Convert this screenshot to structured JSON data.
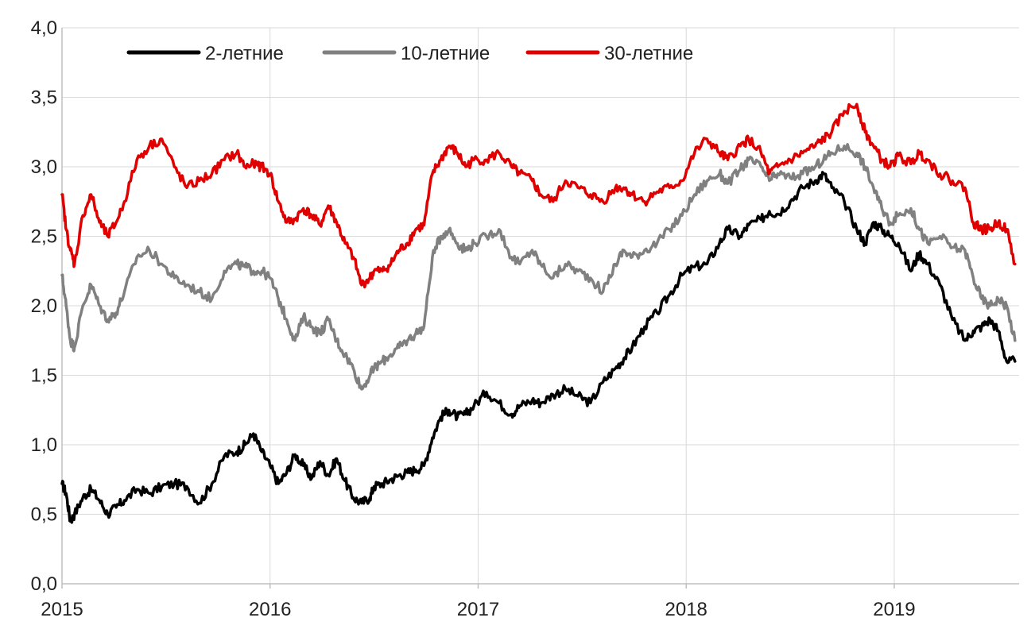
{
  "chart_data": {
    "type": "line",
    "title": "",
    "xlabel": "",
    "ylabel": "",
    "xlim": [
      2015.0,
      2019.6
    ],
    "ylim": [
      0,
      4
    ],
    "y_ticks": [
      0,
      0.5,
      1.0,
      1.5,
      2.0,
      2.5,
      3.0,
      3.5,
      4.0
    ],
    "y_tick_labels": [
      "0,0",
      "0,5",
      "1,0",
      "1,5",
      "2,0",
      "2,5",
      "3,0",
      "3,5",
      "4,0"
    ],
    "x_ticks": [
      2015,
      2016,
      2017,
      2018,
      2019
    ],
    "x_tick_labels": [
      "2015",
      "2016",
      "2017",
      "2018",
      "2019"
    ],
    "grid": true,
    "legend_position": "top",
    "series": [
      {
        "name": "2-летние",
        "color": "#000000",
        "x": [
          2015.0,
          2015.02,
          2015.04,
          2015.06,
          2015.1,
          2015.14,
          2015.18,
          2015.22,
          2015.26,
          2015.3,
          2015.36,
          2015.42,
          2015.48,
          2015.54,
          2015.6,
          2015.66,
          2015.72,
          2015.78,
          2015.84,
          2015.88,
          2015.92,
          2015.96,
          2016.0,
          2016.04,
          2016.08,
          2016.12,
          2016.16,
          2016.2,
          2016.24,
          2016.28,
          2016.32,
          2016.36,
          2016.4,
          2016.44,
          2016.48,
          2016.5,
          2016.54,
          2016.58,
          2016.62,
          2016.66,
          2016.7,
          2016.74,
          2016.78,
          2016.82,
          2016.86,
          2016.9,
          2016.94,
          2016.98,
          2017.04,
          2017.1,
          2017.16,
          2017.2,
          2017.26,
          2017.3,
          2017.36,
          2017.42,
          2017.48,
          2017.54,
          2017.6,
          2017.66,
          2017.7,
          2017.74,
          2017.8,
          2017.86,
          2017.92,
          2017.98,
          2018.04,
          2018.1,
          2018.16,
          2018.2,
          2018.26,
          2018.3,
          2018.36,
          2018.4,
          2018.44,
          2018.5,
          2018.56,
          2018.62,
          2018.66,
          2018.7,
          2018.76,
          2018.82,
          2018.86,
          2018.9,
          2018.94,
          2018.98,
          2019.02,
          2019.08,
          2019.12,
          2019.16,
          2019.22,
          2019.28,
          2019.34,
          2019.38,
          2019.42,
          2019.46,
          2019.5,
          2019.54,
          2019.58
        ],
        "values": [
          0.72,
          0.65,
          0.45,
          0.5,
          0.62,
          0.68,
          0.6,
          0.5,
          0.55,
          0.6,
          0.68,
          0.65,
          0.7,
          0.72,
          0.7,
          0.58,
          0.72,
          0.92,
          0.95,
          1.0,
          1.08,
          0.95,
          0.85,
          0.72,
          0.8,
          0.93,
          0.85,
          0.76,
          0.88,
          0.78,
          0.9,
          0.74,
          0.62,
          0.58,
          0.62,
          0.7,
          0.72,
          0.75,
          0.78,
          0.8,
          0.82,
          0.85,
          1.05,
          1.2,
          1.25,
          1.2,
          1.22,
          1.28,
          1.38,
          1.3,
          1.22,
          1.28,
          1.32,
          1.3,
          1.36,
          1.4,
          1.35,
          1.3,
          1.45,
          1.55,
          1.62,
          1.7,
          1.85,
          1.95,
          2.08,
          2.22,
          2.28,
          2.3,
          2.45,
          2.55,
          2.5,
          2.58,
          2.62,
          2.68,
          2.66,
          2.75,
          2.85,
          2.9,
          2.95,
          2.85,
          2.75,
          2.55,
          2.45,
          2.6,
          2.55,
          2.5,
          2.45,
          2.25,
          2.38,
          2.3,
          2.15,
          1.9,
          1.75,
          1.82,
          1.85,
          1.9,
          1.82,
          1.6,
          1.6
        ]
      },
      {
        "name": "10-летние",
        "color": "#808080",
        "x": [
          2015.0,
          2015.02,
          2015.04,
          2015.06,
          2015.1,
          2015.14,
          2015.18,
          2015.22,
          2015.26,
          2015.3,
          2015.36,
          2015.42,
          2015.48,
          2015.54,
          2015.6,
          2015.66,
          2015.72,
          2015.78,
          2015.84,
          2015.88,
          2015.92,
          2015.96,
          2016.0,
          2016.04,
          2016.08,
          2016.12,
          2016.16,
          2016.2,
          2016.24,
          2016.28,
          2016.32,
          2016.36,
          2016.4,
          2016.44,
          2016.48,
          2016.5,
          2016.54,
          2016.58,
          2016.62,
          2016.66,
          2016.7,
          2016.74,
          2016.78,
          2016.82,
          2016.86,
          2016.9,
          2016.94,
          2016.98,
          2017.04,
          2017.1,
          2017.16,
          2017.2,
          2017.26,
          2017.3,
          2017.36,
          2017.42,
          2017.48,
          2017.54,
          2017.6,
          2017.66,
          2017.7,
          2017.74,
          2017.8,
          2017.86,
          2017.92,
          2017.98,
          2018.04,
          2018.1,
          2018.16,
          2018.2,
          2018.26,
          2018.3,
          2018.36,
          2018.4,
          2018.44,
          2018.5,
          2018.56,
          2018.62,
          2018.66,
          2018.7,
          2018.76,
          2018.82,
          2018.86,
          2018.9,
          2018.94,
          2018.98,
          2019.02,
          2019.08,
          2019.12,
          2019.16,
          2019.22,
          2019.28,
          2019.34,
          2019.38,
          2019.42,
          2019.46,
          2019.5,
          2019.54,
          2019.58
        ],
        "values": [
          2.22,
          2.0,
          1.75,
          1.7,
          2.0,
          2.15,
          2.0,
          1.9,
          1.95,
          2.1,
          2.35,
          2.4,
          2.3,
          2.2,
          2.15,
          2.1,
          2.05,
          2.25,
          2.3,
          2.28,
          2.25,
          2.25,
          2.2,
          2.05,
          1.9,
          1.75,
          1.92,
          1.85,
          1.8,
          1.9,
          1.75,
          1.65,
          1.55,
          1.4,
          1.5,
          1.55,
          1.6,
          1.65,
          1.7,
          1.75,
          1.8,
          1.85,
          2.35,
          2.5,
          2.55,
          2.45,
          2.4,
          2.45,
          2.5,
          2.55,
          2.35,
          2.3,
          2.4,
          2.3,
          2.2,
          2.3,
          2.25,
          2.2,
          2.1,
          2.3,
          2.4,
          2.35,
          2.4,
          2.45,
          2.55,
          2.65,
          2.8,
          2.9,
          2.95,
          2.88,
          2.98,
          3.05,
          3.0,
          2.9,
          2.95,
          2.92,
          2.95,
          3.0,
          3.05,
          3.1,
          3.15,
          3.1,
          3.0,
          2.85,
          2.7,
          2.6,
          2.65,
          2.7,
          2.55,
          2.45,
          2.5,
          2.42,
          2.4,
          2.2,
          2.05,
          2.0,
          2.05,
          2.0,
          1.75
        ]
      },
      {
        "name": "30-летние",
        "color": "#e00000",
        "x": [
          2015.0,
          2015.02,
          2015.04,
          2015.06,
          2015.1,
          2015.14,
          2015.18,
          2015.22,
          2015.26,
          2015.3,
          2015.36,
          2015.42,
          2015.48,
          2015.54,
          2015.6,
          2015.66,
          2015.72,
          2015.78,
          2015.84,
          2015.88,
          2015.92,
          2015.96,
          2016.0,
          2016.04,
          2016.08,
          2016.12,
          2016.16,
          2016.2,
          2016.24,
          2016.28,
          2016.32,
          2016.36,
          2016.4,
          2016.44,
          2016.48,
          2016.5,
          2016.54,
          2016.58,
          2016.62,
          2016.66,
          2016.7,
          2016.74,
          2016.78,
          2016.82,
          2016.86,
          2016.9,
          2016.94,
          2016.98,
          2017.04,
          2017.1,
          2017.16,
          2017.2,
          2017.26,
          2017.3,
          2017.36,
          2017.42,
          2017.48,
          2017.54,
          2017.6,
          2017.66,
          2017.7,
          2017.74,
          2017.8,
          2017.86,
          2017.92,
          2017.98,
          2018.04,
          2018.1,
          2018.16,
          2018.2,
          2018.26,
          2018.3,
          2018.36,
          2018.4,
          2018.44,
          2018.5,
          2018.56,
          2018.62,
          2018.66,
          2018.7,
          2018.76,
          2018.82,
          2018.86,
          2018.9,
          2018.94,
          2018.98,
          2019.02,
          2019.08,
          2019.12,
          2019.16,
          2019.22,
          2019.28,
          2019.34,
          2019.38,
          2019.42,
          2019.46,
          2019.5,
          2019.54,
          2019.58
        ],
        "values": [
          2.8,
          2.55,
          2.4,
          2.3,
          2.65,
          2.8,
          2.6,
          2.5,
          2.6,
          2.75,
          3.05,
          3.15,
          3.2,
          3.0,
          2.85,
          2.9,
          2.95,
          3.05,
          3.1,
          3.0,
          3.02,
          3.0,
          2.95,
          2.75,
          2.6,
          2.62,
          2.7,
          2.65,
          2.58,
          2.72,
          2.6,
          2.45,
          2.35,
          2.15,
          2.2,
          2.25,
          2.25,
          2.3,
          2.4,
          2.45,
          2.55,
          2.58,
          2.95,
          3.05,
          3.15,
          3.1,
          3.0,
          3.05,
          3.05,
          3.1,
          3.0,
          2.95,
          2.9,
          2.8,
          2.75,
          2.9,
          2.85,
          2.8,
          2.75,
          2.85,
          2.85,
          2.8,
          2.75,
          2.82,
          2.85,
          2.9,
          3.1,
          3.2,
          3.1,
          3.05,
          3.15,
          3.2,
          3.1,
          2.95,
          3.0,
          3.05,
          3.1,
          3.15,
          3.2,
          3.25,
          3.4,
          3.45,
          3.25,
          3.15,
          3.05,
          3.0,
          3.08,
          3.02,
          3.1,
          3.05,
          2.95,
          2.9,
          2.85,
          2.6,
          2.55,
          2.55,
          2.6,
          2.55,
          2.3
        ]
      }
    ]
  }
}
